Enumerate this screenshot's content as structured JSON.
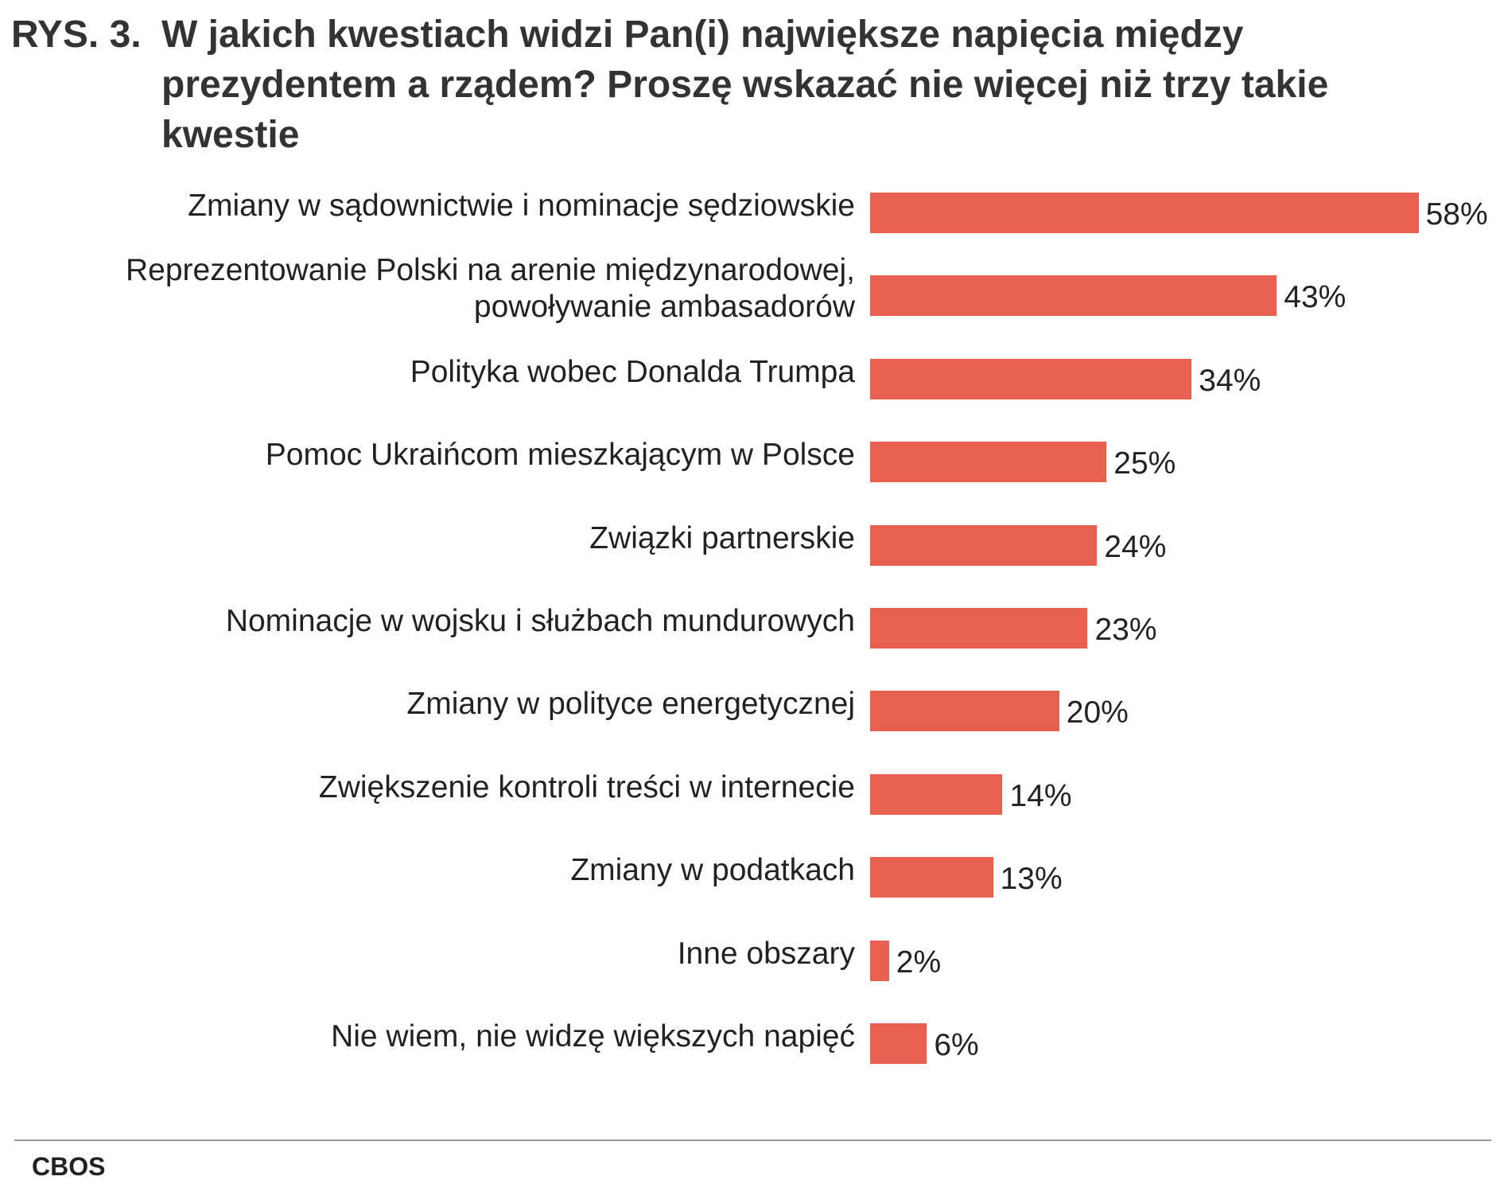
{
  "chart_data": {
    "type": "bar",
    "orientation": "horizontal",
    "figure_label": "RYS. 3.",
    "title": "W jakich kwestiach widzi Pan(i) największe napięcia między prezydentem a rządem? Proszę wskazać nie więcej niż trzy takie kwestie",
    "categories": [
      "Zmiany w sądownictwie i nominacje sędziowskie",
      "Reprezentowanie Polski na arenie międzynarodowej, powoływanie ambasadorów",
      "Polityka wobec Donalda Trumpa",
      "Pomoc Ukraińcom mieszkającym w Polsce",
      "Związki partnerskie",
      "Nominacje w wojsku i służbach mundurowych",
      "Zmiany w polityce energetycznej",
      "Zwiększenie kontroli treści w internecie",
      "Zmiany w podatkach",
      "Inne obszary",
      "Nie wiem, nie widzę większych napięć"
    ],
    "values": [
      58,
      43,
      34,
      25,
      24,
      23,
      20,
      14,
      13,
      2,
      6
    ],
    "value_labels": [
      "58%",
      "43%",
      "34%",
      "25%",
      "24%",
      "23%",
      "20%",
      "14%",
      "13%",
      "2%",
      "6%"
    ],
    "color": "#e8604f",
    "source": "CBOS"
  }
}
